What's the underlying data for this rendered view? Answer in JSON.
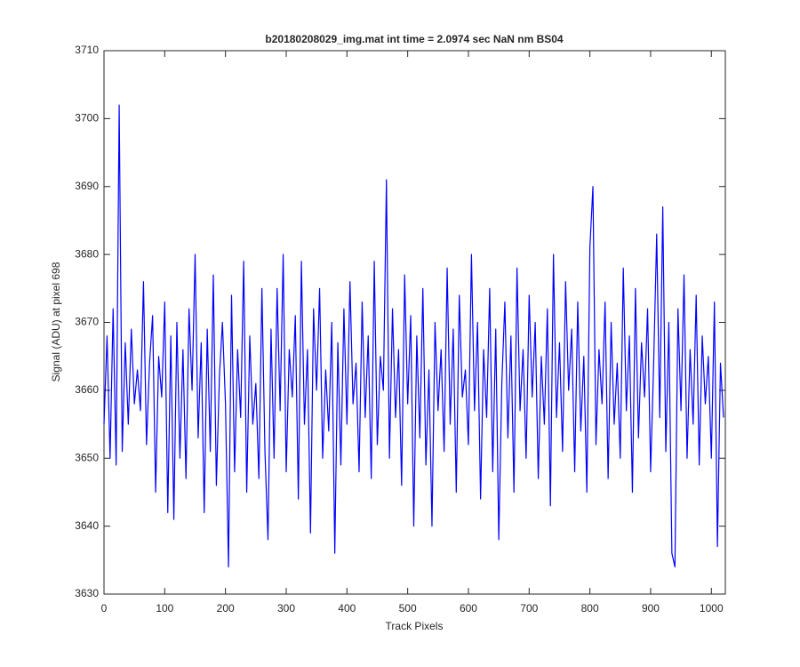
{
  "chart_data": {
    "type": "line",
    "title": "b20180208029_img.mat int time = 2.0974 sec  NaN nm BS04",
    "x_label": "Track Pixels",
    "y_label": "Signal (ADU) at pixel 698",
    "x": [
      0,
      5,
      10,
      15,
      20,
      25,
      30,
      35,
      40,
      45,
      50,
      55,
      60,
      65,
      70,
      75,
      80,
      85,
      90,
      95,
      100,
      105,
      110,
      115,
      120,
      125,
      130,
      135,
      140,
      145,
      150,
      155,
      160,
      165,
      170,
      175,
      180,
      185,
      190,
      195,
      200,
      205,
      210,
      215,
      220,
      225,
      230,
      235,
      240,
      245,
      250,
      255,
      260,
      265,
      270,
      275,
      280,
      285,
      290,
      295,
      300,
      305,
      310,
      315,
      320,
      325,
      330,
      335,
      340,
      345,
      350,
      355,
      360,
      365,
      370,
      375,
      380,
      385,
      390,
      395,
      400,
      405,
      410,
      415,
      420,
      425,
      430,
      435,
      440,
      445,
      450,
      455,
      460,
      465,
      470,
      475,
      480,
      485,
      490,
      495,
      500,
      505,
      510,
      515,
      520,
      525,
      530,
      535,
      540,
      545,
      550,
      555,
      560,
      565,
      570,
      575,
      580,
      585,
      590,
      595,
      600,
      605,
      610,
      615,
      620,
      625,
      630,
      635,
      640,
      645,
      650,
      655,
      660,
      665,
      670,
      675,
      680,
      685,
      690,
      695,
      700,
      705,
      710,
      715,
      720,
      725,
      730,
      735,
      740,
      745,
      750,
      755,
      760,
      765,
      770,
      775,
      780,
      785,
      790,
      795,
      800,
      805,
      810,
      815,
      820,
      825,
      830,
      835,
      840,
      845,
      850,
      855,
      860,
      865,
      870,
      875,
      880,
      885,
      890,
      895,
      900,
      905,
      910,
      915,
      920,
      925,
      930,
      935,
      940,
      945,
      950,
      955,
      960,
      965,
      970,
      975,
      980,
      985,
      990,
      995,
      1000,
      1005,
      1010,
      1015,
      1020
    ],
    "series": [
      {
        "name": "signal",
        "color": "#0000ff",
        "values": [
          3655,
          3668,
          3650,
          3672,
          3649,
          3702,
          3651,
          3667,
          3655,
          3669,
          3658,
          3663,
          3657,
          3676,
          3652,
          3664,
          3671,
          3645,
          3665,
          3659,
          3673,
          3642,
          3668,
          3641,
          3670,
          3650,
          3666,
          3647,
          3672,
          3660,
          3680,
          3653,
          3667,
          3642,
          3669,
          3651,
          3677,
          3646,
          3662,
          3670,
          3658,
          3634,
          3674,
          3648,
          3666,
          3656,
          3679,
          3645,
          3668,
          3655,
          3661,
          3647,
          3675,
          3651,
          3638,
          3669,
          3650,
          3675,
          3657,
          3680,
          3648,
          3666,
          3659,
          3671,
          3644,
          3679,
          3655,
          3666,
          3639,
          3672,
          3660,
          3675,
          3650,
          3663,
          3654,
          3670,
          3636,
          3667,
          3649,
          3672,
          3655,
          3676,
          3658,
          3664,
          3648,
          3673,
          3656,
          3668,
          3647,
          3679,
          3652,
          3665,
          3660,
          3691,
          3650,
          3672,
          3656,
          3666,
          3646,
          3677,
          3658,
          3671,
          3640,
          3668,
          3653,
          3675,
          3649,
          3663,
          3640,
          3670,
          3657,
          3666,
          3651,
          3678,
          3655,
          3669,
          3645,
          3674,
          3659,
          3663,
          3652,
          3680,
          3657,
          3670,
          3644,
          3666,
          3656,
          3675,
          3648,
          3669,
          3638,
          3661,
          3673,
          3653,
          3668,
          3645,
          3678,
          3657,
          3666,
          3650,
          3674,
          3659,
          3670,
          3647,
          3665,
          3655,
          3672,
          3643,
          3680,
          3656,
          3667,
          3651,
          3676,
          3660,
          3669,
          3648,
          3673,
          3654,
          3665,
          3645,
          3681,
          3690,
          3652,
          3666,
          3658,
          3673,
          3647,
          3670,
          3655,
          3664,
          3650,
          3678,
          3657,
          3668,
          3645,
          3675,
          3653,
          3667,
          3659,
          3672,
          3648,
          3664,
          3683,
          3656,
          3687,
          3651,
          3670,
          3636,
          3634,
          3672,
          3657,
          3677,
          3650,
          3666,
          3655,
          3674,
          3649,
          3668,
          3658,
          3665,
          3650,
          3673,
          3637,
          3664,
          3656
        ]
      }
    ],
    "xlim": [
      0,
      1023
    ],
    "xticks": [
      0,
      100,
      200,
      300,
      400,
      500,
      600,
      700,
      800,
      900,
      1000
    ],
    "ylim": [
      3630,
      3710
    ],
    "yticks": [
      3630,
      3640,
      3650,
      3660,
      3670,
      3680,
      3690,
      3700,
      3710
    ]
  }
}
